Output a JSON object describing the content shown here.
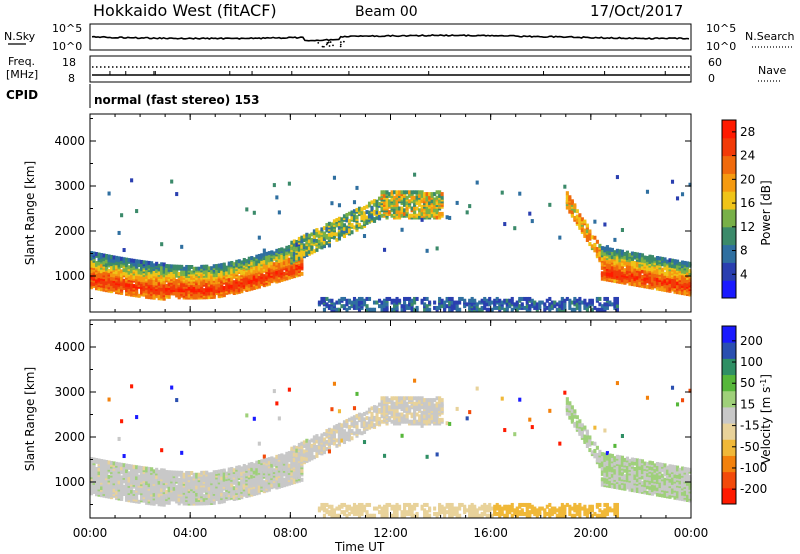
{
  "header": {
    "title": "Hokkaido West (fitACF)",
    "beam": "Beam 00",
    "date": "17/Oct/2017"
  },
  "top_panels": {
    "nsky_label": "N.Sky",
    "nsky_ticks": [
      "10^5",
      "10^0"
    ],
    "nsearch_label": "N.Search",
    "freq_label_line1": "Freq.",
    "freq_label_line2": "[MHz]",
    "freq_ticks": [
      "18",
      "8"
    ],
    "nave_ticks": [
      "60",
      "0"
    ],
    "nave_label": "Nave",
    "cpid_label": "CPID",
    "cpid_text": "normal (fast stereo) 153"
  },
  "colors": {
    "power": [
      "#1a1aff",
      "#2a3fb0",
      "#2f6fa0",
      "#3b8a6a",
      "#78b048",
      "#f0c418",
      "#f59a10",
      "#f06a0c",
      "#f23a08",
      "#ff1a00"
    ],
    "velocity": [
      "#ff1a00",
      "#f24a0a",
      "#f3810c",
      "#f0b838",
      "#e8d29a",
      "#c8c8c8",
      "#9fd07a",
      "#56b73a",
      "#2f8f64",
      "#2a4fb0",
      "#1a1aff"
    ]
  },
  "chart_data": [
    {
      "type": "heatmap",
      "name": "power",
      "ylabel": "Slant Range [km]",
      "y_ticks": [
        "4000",
        "3000",
        "2000",
        "1000"
      ],
      "ylim": [
        200,
        4600
      ],
      "x_ticks": [
        "00:00",
        "04:00",
        "08:00",
        "12:00",
        "16:00",
        "20:00",
        "00:00"
      ],
      "xlim_hours": [
        0,
        24
      ],
      "colorbar": {
        "label": "Power [dB]",
        "ticks": [
          "28",
          "24",
          "20",
          "16",
          "12",
          "8",
          "4"
        ],
        "range": [
          0,
          30
        ]
      }
    },
    {
      "type": "heatmap",
      "name": "velocity",
      "ylabel": "Slant Range [km]",
      "y_ticks": [
        "4000",
        "3000",
        "2000",
        "1000"
      ],
      "ylim": [
        200,
        4600
      ],
      "x_ticks": [
        "00:00",
        "04:00",
        "08:00",
        "12:00",
        "16:00",
        "20:00",
        "00:00"
      ],
      "xlabel": "Time UT",
      "xlim_hours": [
        0,
        24
      ],
      "colorbar": {
        "label": "Velocity [m s",
        "label_sup": "-1",
        "label_close": "]",
        "ticks": [
          "200",
          "100",
          "50",
          "15",
          "-15",
          "-50",
          "-100",
          "-200"
        ],
        "range": [
          -250,
          250
        ]
      }
    }
  ]
}
